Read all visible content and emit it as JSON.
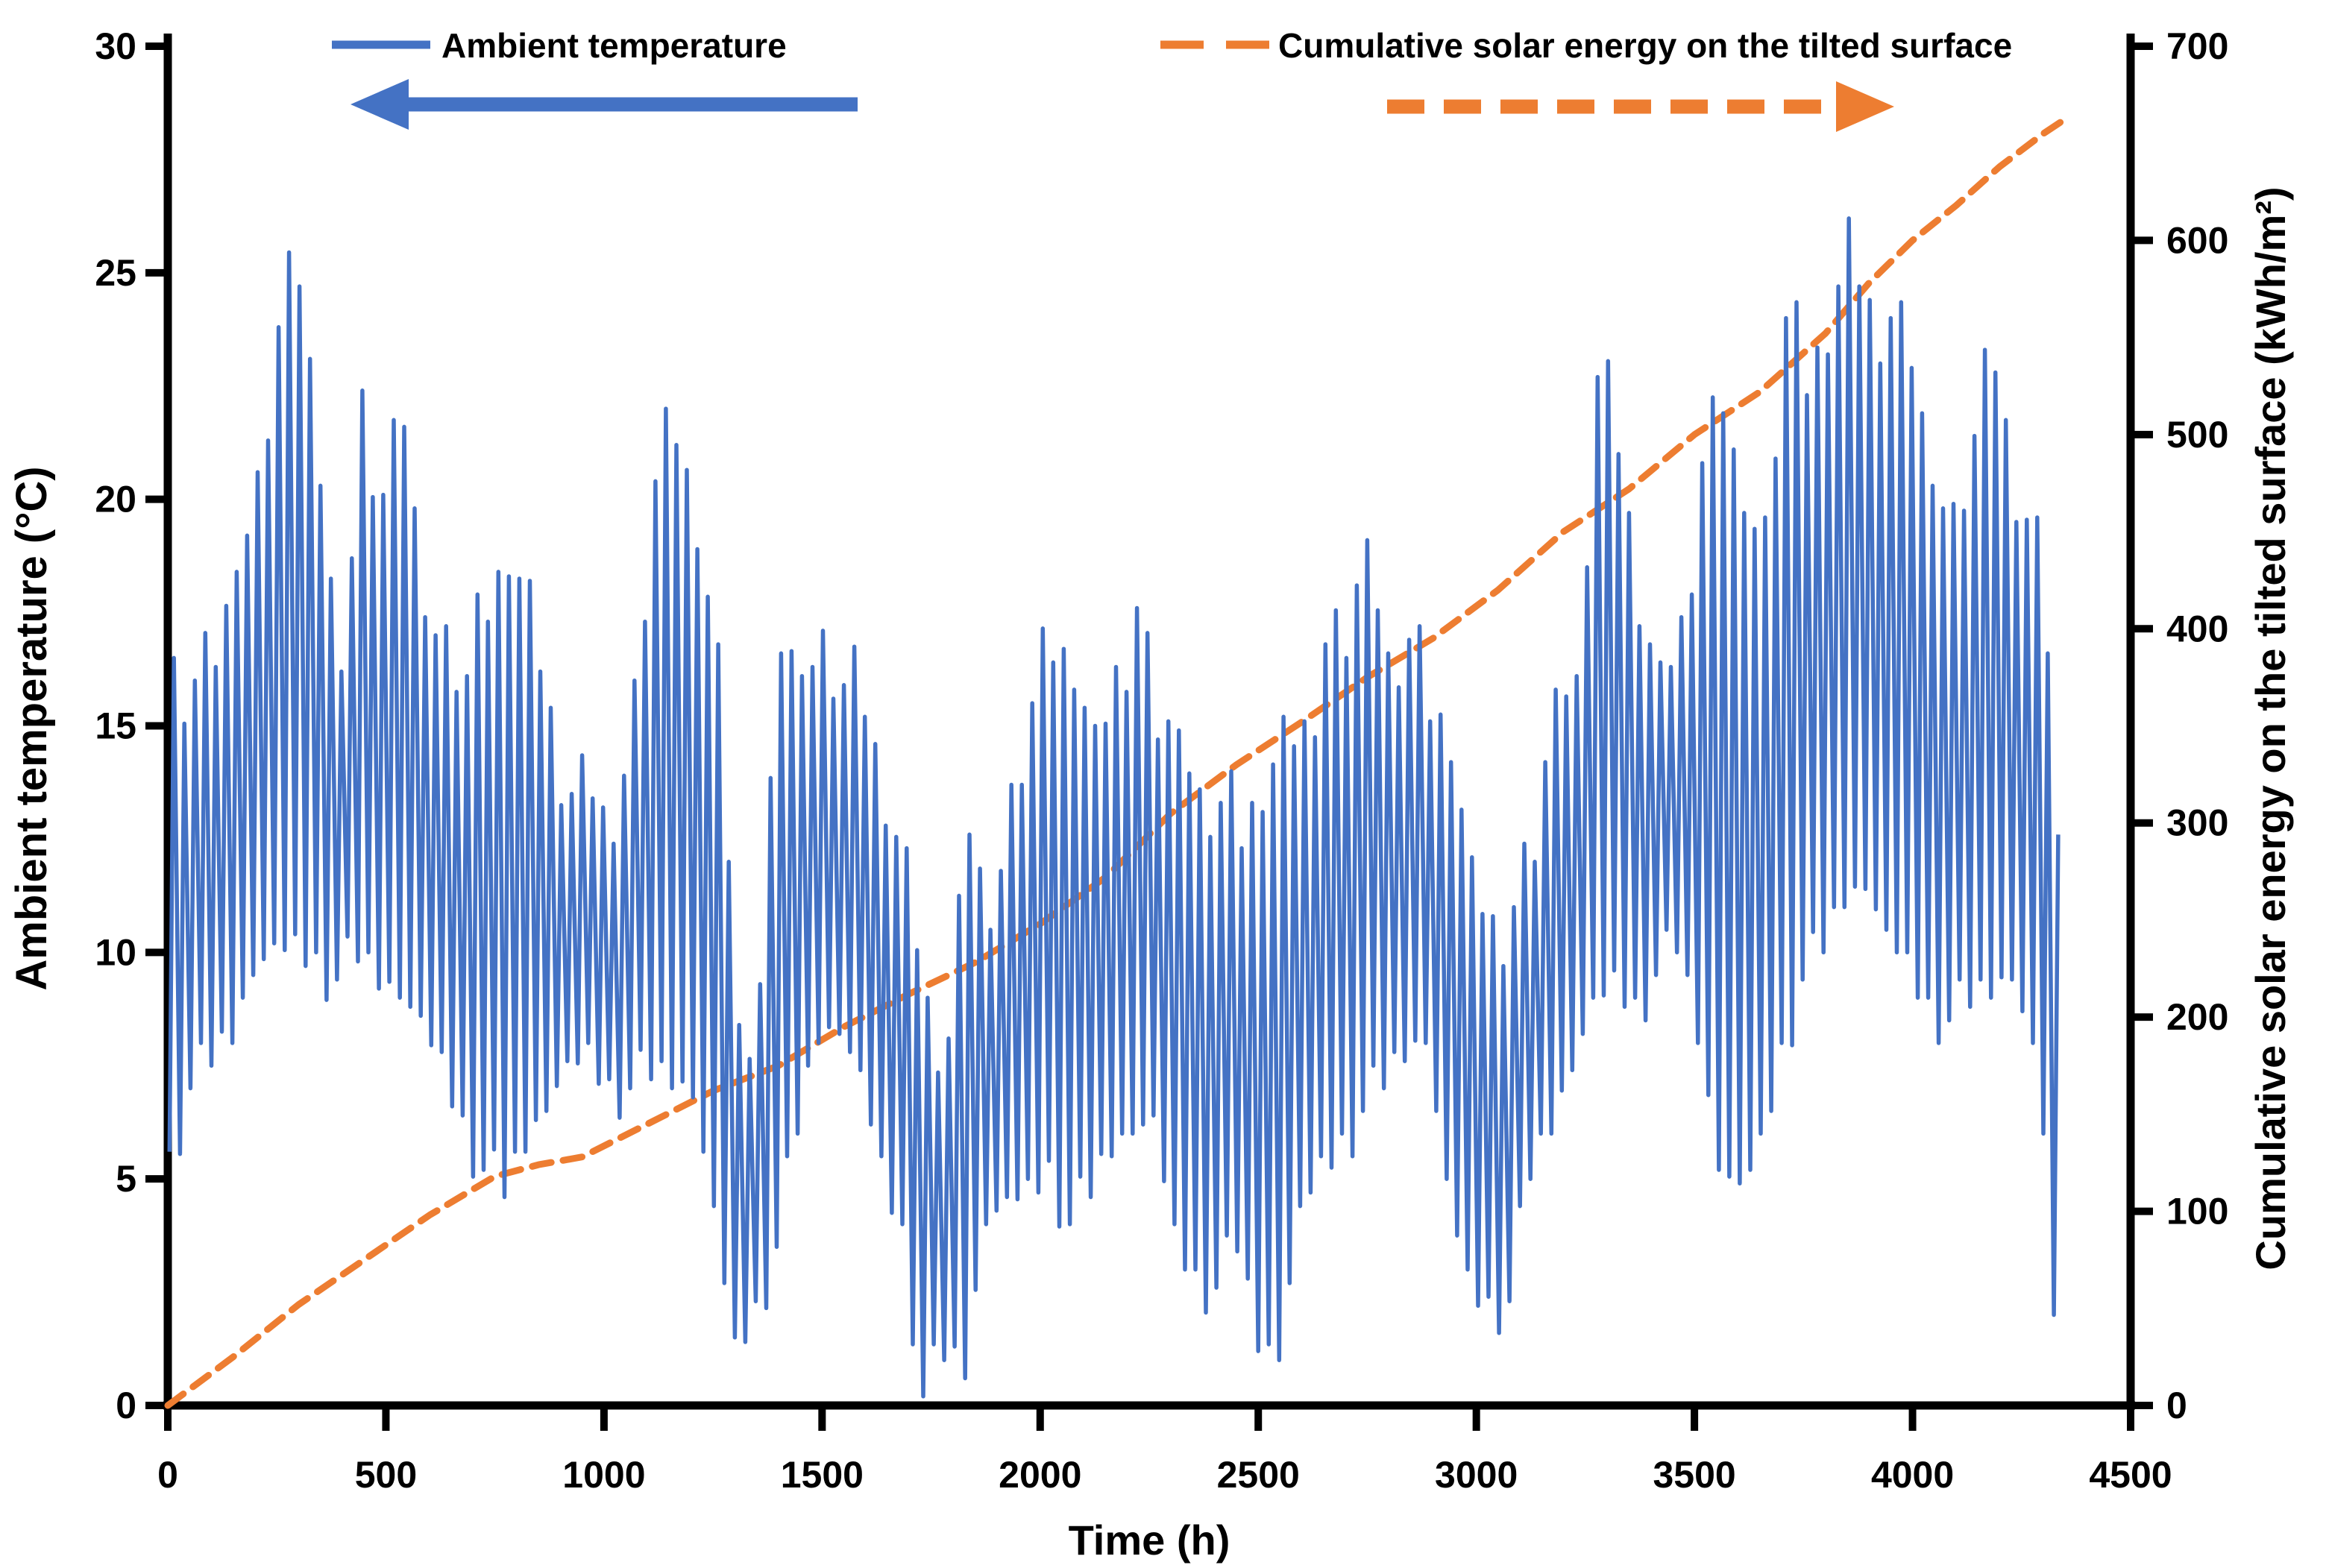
{
  "colors": {
    "temperature_line": "#4472C4",
    "solar_line": "#ED7D31",
    "axis": "#000000",
    "background": "#FFFFFF"
  },
  "chart_data": {
    "type": "line",
    "title": "",
    "xlabel": "Time (h)",
    "ylabel_left": "Ambient temperature (°C)",
    "ylabel_right": "Cumulative solar energy on the tilted surface (kWh/m²)",
    "xlim": [
      0,
      4500
    ],
    "ylim_left": [
      0,
      30
    ],
    "ylim_right": [
      0,
      700
    ],
    "x_ticks": [
      0,
      500,
      1000,
      1500,
      2000,
      2500,
      3000,
      3500,
      4000,
      4500
    ],
    "y_left_ticks": [
      0,
      5,
      10,
      15,
      20,
      25,
      30
    ],
    "y_right_ticks": [
      0,
      100,
      200,
      300,
      400,
      500,
      600,
      700
    ],
    "grid": false,
    "legend_position": "top",
    "annotations": [
      {
        "type": "arrow",
        "direction": "left",
        "color": "#4472C4",
        "style": "solid",
        "meaning": "Ambient temperature read on left axis"
      },
      {
        "type": "arrow",
        "direction": "right",
        "color": "#ED7D31",
        "style": "dashed",
        "meaning": "Cumulative solar energy read on right axis"
      }
    ],
    "series": [
      {
        "name": "Ambient temperature",
        "axis": "left",
        "unit": "°C",
        "color": "#4472C4",
        "style": "solid",
        "sampling": "daily min/max envelope, 48 h steps, values in °C",
        "points_t_min_max": [
          [
            0,
            5.6,
            16.5
          ],
          [
            48,
            7.0,
            16.0
          ],
          [
            96,
            7.5,
            16.3
          ],
          [
            144,
            8.0,
            18.4
          ],
          [
            192,
            9.5,
            20.6
          ],
          [
            240,
            10.2,
            23.8
          ],
          [
            288,
            10.4,
            24.7
          ],
          [
            336,
            10.0,
            20.3
          ],
          [
            384,
            9.4,
            16.2
          ],
          [
            432,
            9.8,
            22.4
          ],
          [
            480,
            9.2,
            20.1
          ],
          [
            528,
            9.0,
            21.6
          ],
          [
            576,
            8.6,
            17.4
          ],
          [
            624,
            7.8,
            17.2
          ],
          [
            672,
            6.4,
            16.1
          ],
          [
            720,
            5.2,
            17.3
          ],
          [
            768,
            4.6,
            18.3
          ],
          [
            816,
            5.6,
            18.2
          ],
          [
            864,
            6.5,
            15.4
          ],
          [
            912,
            7.6,
            13.5
          ],
          [
            960,
            8.0,
            13.4
          ],
          [
            1008,
            7.2,
            12.4
          ],
          [
            1056,
            7.0,
            16.0
          ],
          [
            1104,
            7.2,
            20.4
          ],
          [
            1152,
            7.0,
            21.2
          ],
          [
            1200,
            6.8,
            18.9
          ],
          [
            1248,
            4.4,
            16.8
          ],
          [
            1296,
            1.5,
            8.4
          ],
          [
            1344,
            2.3,
            9.3
          ],
          [
            1392,
            3.5,
            16.6
          ],
          [
            1440,
            6.0,
            16.1
          ],
          [
            1488,
            8.0,
            17.1
          ],
          [
            1536,
            8.2,
            15.9
          ],
          [
            1584,
            7.4,
            15.2
          ],
          [
            1632,
            5.5,
            12.8
          ],
          [
            1680,
            4.0,
            12.3
          ],
          [
            1728,
            0.2,
            9.0
          ],
          [
            1776,
            1.0,
            8.1
          ],
          [
            1824,
            0.6,
            12.6
          ],
          [
            1872,
            4.0,
            10.5
          ],
          [
            1920,
            4.6,
            13.7
          ],
          [
            1968,
            5.0,
            15.5
          ],
          [
            2016,
            5.4,
            16.4
          ],
          [
            2064,
            4.0,
            15.8
          ],
          [
            2112,
            4.6,
            15.0
          ],
          [
            2160,
            5.5,
            16.3
          ],
          [
            2208,
            6.0,
            17.6
          ],
          [
            2256,
            6.4,
            14.7
          ],
          [
            2304,
            4.0,
            14.9
          ],
          [
            2352,
            3.0,
            13.6
          ],
          [
            2400,
            2.6,
            13.3
          ],
          [
            2448,
            3.4,
            12.3
          ],
          [
            2496,
            1.2,
            13.1
          ],
          [
            2544,
            1.0,
            15.2
          ],
          [
            2592,
            4.4,
            15.1
          ],
          [
            2640,
            5.5,
            16.8
          ],
          [
            2688,
            6.0,
            16.5
          ],
          [
            2736,
            6.5,
            19.1
          ],
          [
            2784,
            7.0,
            16.6
          ],
          [
            2832,
            7.6,
            16.9
          ],
          [
            2880,
            8.0,
            15.1
          ],
          [
            2928,
            5.0,
            14.2
          ],
          [
            2976,
            3.0,
            12.1
          ],
          [
            3024,
            2.4,
            10.8
          ],
          [
            3072,
            2.3,
            11.0
          ],
          [
            3120,
            5.0,
            12.0
          ],
          [
            3168,
            6.0,
            15.8
          ],
          [
            3216,
            7.4,
            16.1
          ],
          [
            3264,
            9.0,
            22.7
          ],
          [
            3312,
            9.6,
            21.0
          ],
          [
            3360,
            9.0,
            17.2
          ],
          [
            3408,
            9.5,
            16.4
          ],
          [
            3456,
            10.0,
            17.4
          ],
          [
            3504,
            8.0,
            20.8
          ],
          [
            3552,
            5.2,
            21.9
          ],
          [
            3600,
            4.9,
            19.7
          ],
          [
            3648,
            6.0,
            19.6
          ],
          [
            3696,
            8.0,
            24.0
          ],
          [
            3744,
            9.4,
            22.3
          ],
          [
            3792,
            10.0,
            23.2
          ],
          [
            3840,
            11.0,
            26.2
          ],
          [
            3888,
            11.4,
            24.4
          ],
          [
            3936,
            10.5,
            24.0
          ],
          [
            3984,
            10.0,
            22.9
          ],
          [
            4032,
            9.0,
            20.3
          ],
          [
            4080,
            8.5,
            19.9
          ],
          [
            4128,
            8.8,
            21.4
          ],
          [
            4176,
            9.0,
            22.8
          ],
          [
            4224,
            9.4,
            19.5
          ],
          [
            4272,
            8.0,
            19.6
          ],
          [
            4296,
            6.0,
            16.6
          ],
          [
            4320,
            2.0,
            12.6
          ]
        ]
      },
      {
        "name": "Cumulative solar energy on the tilted surface",
        "axis": "right",
        "unit": "kWh/m²",
        "color": "#ED7D31",
        "style": "dashed",
        "points_t_value": [
          [
            0,
            0
          ],
          [
            150,
            25
          ],
          [
            300,
            52
          ],
          [
            450,
            75
          ],
          [
            600,
            98
          ],
          [
            750,
            118
          ],
          [
            850,
            124
          ],
          [
            950,
            128
          ],
          [
            1100,
            145
          ],
          [
            1250,
            162
          ],
          [
            1400,
            175
          ],
          [
            1550,
            195
          ],
          [
            1700,
            212
          ],
          [
            1850,
            228
          ],
          [
            2000,
            248
          ],
          [
            2150,
            272
          ],
          [
            2300,
            305
          ],
          [
            2450,
            330
          ],
          [
            2600,
            352
          ],
          [
            2750,
            375
          ],
          [
            2900,
            395
          ],
          [
            3050,
            420
          ],
          [
            3200,
            450
          ],
          [
            3350,
            472
          ],
          [
            3500,
            500
          ],
          [
            3650,
            522
          ],
          [
            3800,
            552
          ],
          [
            3900,
            578
          ],
          [
            4000,
            600
          ],
          [
            4100,
            618
          ],
          [
            4200,
            638
          ],
          [
            4300,
            655
          ],
          [
            4340,
            661
          ]
        ]
      }
    ]
  },
  "legend": {
    "items": [
      {
        "label": "Ambient temperature",
        "marker": "solid-blue-line"
      },
      {
        "label": "Cumulative solar energy on the tilted surface",
        "marker": "dashed-orange-line"
      }
    ]
  }
}
